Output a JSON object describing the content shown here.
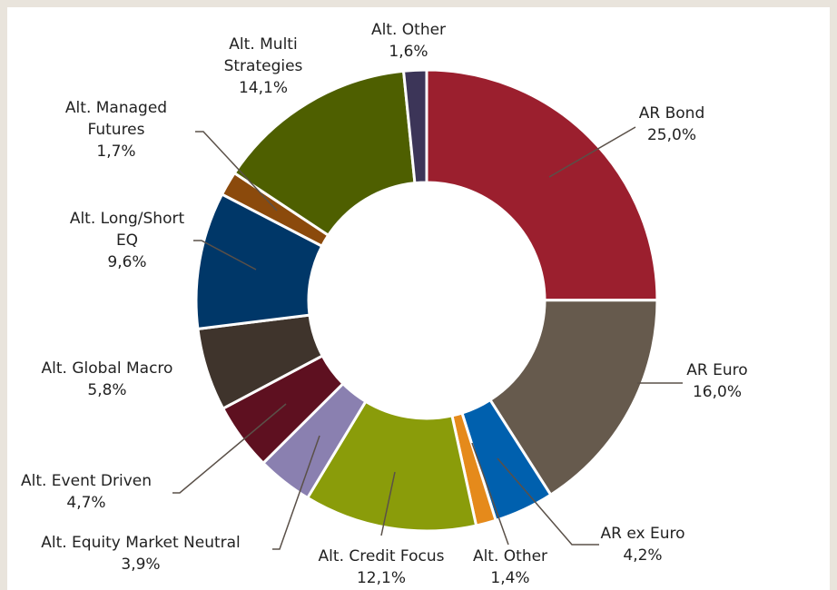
{
  "chart_data": {
    "type": "donut",
    "categories": [
      "AR Bond",
      "AR Euro",
      "AR ex Euro",
      "Alt. Other",
      "Alt. Credit Focus",
      "Alt. Equity Market Neutral",
      "Alt. Event Driven",
      "Alt. Global Macro",
      "Alt. Long/Short EQ",
      "Alt. Managed Futures",
      "Alt. Multi Strategies",
      "Alt. Other"
    ],
    "values": [
      25.0,
      16.0,
      4.2,
      1.4,
      12.1,
      3.9,
      4.7,
      5.8,
      9.6,
      1.7,
      14.1,
      1.6
    ],
    "value_labels": [
      "25,0%",
      "16,0%",
      "4,2%",
      "1,4%",
      "12,1%",
      "3,9%",
      "4,7%",
      "5,8%",
      "9,6%",
      "1,7%",
      "14,1%",
      "1,6%"
    ],
    "colors": [
      "#9b1f2e",
      "#665a4d",
      "#0060ae",
      "#e58a1b",
      "#8a9c0a",
      "#8a80b0",
      "#5e1020",
      "#3f342c",
      "#003768",
      "#8b4a0c",
      "#4e5f00",
      "#3c3558"
    ]
  }
}
